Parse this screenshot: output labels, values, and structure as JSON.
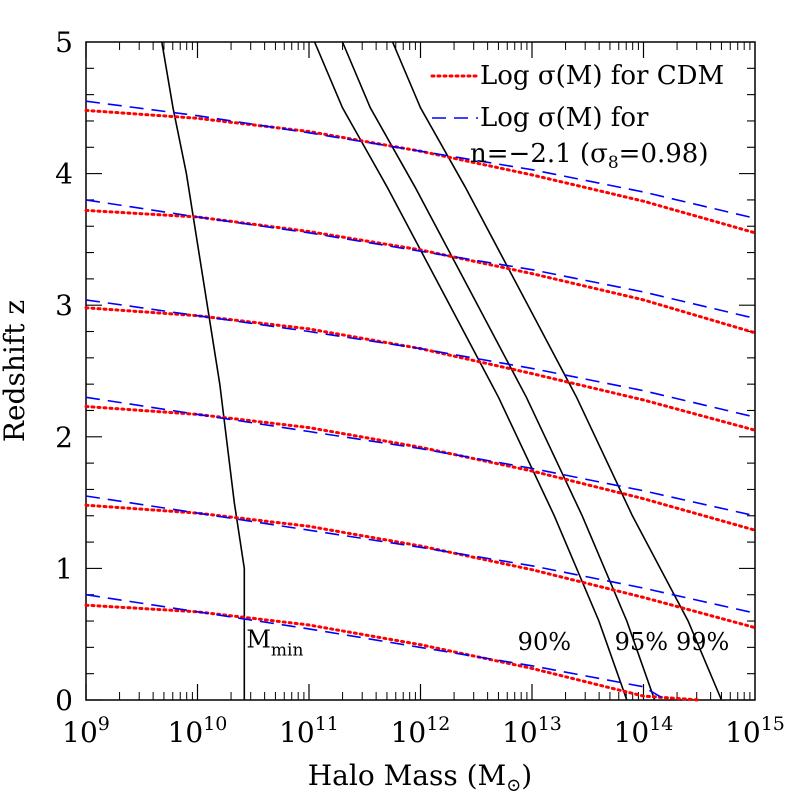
{
  "chart_data": {
    "type": "line",
    "xlabel": "Halo Mass (M",
    "xlabel_sub": "⊙",
    "xlabel_close": ")",
    "ylabel": "Redshift z",
    "xscale": "log",
    "xlim": [
      1000000000.0,
      1000000000000000.0
    ],
    "ylim": [
      0,
      5
    ],
    "x_ticks": [
      {
        "value": 1000000000.0,
        "base": "10",
        "exp": "9"
      },
      {
        "value": 10000000000.0,
        "base": "10",
        "exp": "10"
      },
      {
        "value": 100000000000.0,
        "base": "10",
        "exp": "11"
      },
      {
        "value": 1000000000000.0,
        "base": "10",
        "exp": "12"
      },
      {
        "value": 10000000000000.0,
        "base": "10",
        "exp": "13"
      },
      {
        "value": 100000000000000.0,
        "base": "10",
        "exp": "14"
      },
      {
        "value": 1000000000000000.0,
        "base": "10",
        "exp": "15"
      }
    ],
    "y_ticks": [
      "0",
      "1",
      "2",
      "3",
      "4",
      "5"
    ],
    "grid": false,
    "legend_position": "top-right",
    "legend": [
      {
        "text": "Log σ(M) for CDM",
        "style": "dotted",
        "color": "#ff0000"
      },
      {
        "text": "Log σ(M) for",
        "text2": "n=−2.1 (σ",
        "text2_sub": "8",
        "text2_end": "=0.98)",
        "style": "dashed",
        "color": "#0000ff"
      }
    ],
    "series_cdm": [
      {
        "x": [
          9,
          10,
          11,
          12,
          13,
          14,
          15
        ],
        "y": [
          4.48,
          4.42,
          4.32,
          4.17,
          3.99,
          3.79,
          3.55
        ]
      },
      {
        "x": [
          9,
          10,
          11,
          12,
          13,
          14,
          15
        ],
        "y": [
          3.72,
          3.67,
          3.56,
          3.42,
          3.24,
          3.04,
          2.79
        ]
      },
      {
        "x": [
          9,
          10,
          11,
          12,
          13,
          14,
          15
        ],
        "y": [
          2.98,
          2.92,
          2.82,
          2.67,
          2.48,
          2.28,
          2.05
        ]
      },
      {
        "x": [
          9,
          10,
          11,
          12,
          13,
          14,
          15
        ],
        "y": [
          2.23,
          2.17,
          2.07,
          1.92,
          1.74,
          1.53,
          1.29
        ]
      },
      {
        "x": [
          9,
          10,
          11,
          12,
          13,
          14,
          15
        ],
        "y": [
          1.48,
          1.42,
          1.32,
          1.17,
          0.99,
          0.78,
          0.55
        ]
      },
      {
        "x": [
          9,
          10,
          11,
          12,
          13,
          14,
          14.5
        ],
        "y": [
          0.72,
          0.67,
          0.57,
          0.42,
          0.24,
          0.03,
          0.0
        ]
      }
    ],
    "series_n21": [
      {
        "x": [
          9,
          10,
          11,
          12,
          13,
          14,
          15
        ],
        "y": [
          4.55,
          4.44,
          4.31,
          4.17,
          4.03,
          3.86,
          3.66
        ]
      },
      {
        "x": [
          9,
          10,
          11,
          12,
          13,
          14,
          15
        ],
        "y": [
          3.8,
          3.67,
          3.55,
          3.41,
          3.27,
          3.1,
          2.9
        ]
      },
      {
        "x": [
          9,
          10,
          11,
          12,
          13,
          14,
          15
        ],
        "y": [
          3.04,
          2.92,
          2.8,
          2.67,
          2.52,
          2.35,
          2.15
        ]
      },
      {
        "x": [
          9,
          10,
          11,
          12,
          13,
          14,
          15
        ],
        "y": [
          2.3,
          2.17,
          2.04,
          1.91,
          1.76,
          1.59,
          1.4
        ]
      },
      {
        "x": [
          9,
          10,
          11,
          12,
          13,
          14,
          15
        ],
        "y": [
          1.55,
          1.42,
          1.29,
          1.16,
          1.02,
          0.85,
          0.66
        ]
      },
      {
        "x": [
          9,
          10,
          11,
          12,
          13,
          14,
          14.2
        ],
        "y": [
          0.8,
          0.67,
          0.54,
          0.4,
          0.26,
          0.1,
          0.0
        ]
      }
    ],
    "series_black": [
      {
        "name": "M_min",
        "x": [
          9.68,
          9.78,
          9.9,
          10.05,
          10.2,
          10.33,
          10.42,
          10.42
        ],
        "y": [
          5,
          4.5,
          4.0,
          3.2,
          2.4,
          1.5,
          1.0,
          0.0
        ]
      },
      {
        "name": "90%",
        "x": [
          11.05,
          11.3,
          11.7,
          12.2,
          12.7,
          13.2,
          13.6,
          13.85
        ],
        "y": [
          5,
          4.5,
          3.9,
          3.1,
          2.3,
          1.4,
          0.6,
          0.0
        ]
      },
      {
        "name": "95%",
        "x": [
          11.3,
          11.55,
          11.95,
          12.45,
          12.95,
          13.45,
          13.85,
          14.1
        ],
        "y": [
          5,
          4.5,
          3.9,
          3.1,
          2.3,
          1.4,
          0.6,
          0.0
        ]
      },
      {
        "name": "99%",
        "x": [
          11.75,
          12.0,
          12.4,
          12.9,
          13.4,
          13.9,
          14.4,
          14.7
        ],
        "y": [
          5,
          4.5,
          3.9,
          3.1,
          2.3,
          1.4,
          0.6,
          0.0
        ]
      }
    ],
    "annotations": [
      {
        "text": "M",
        "sub": "min",
        "x": 10.42,
        "y": 0.4
      },
      {
        "text": "90%",
        "x": 13.35,
        "y": 0.38
      },
      {
        "text": "95%",
        "x": 14.22,
        "y": 0.38
      },
      {
        "text": "99%",
        "x": 14.77,
        "y": 0.38
      }
    ]
  }
}
